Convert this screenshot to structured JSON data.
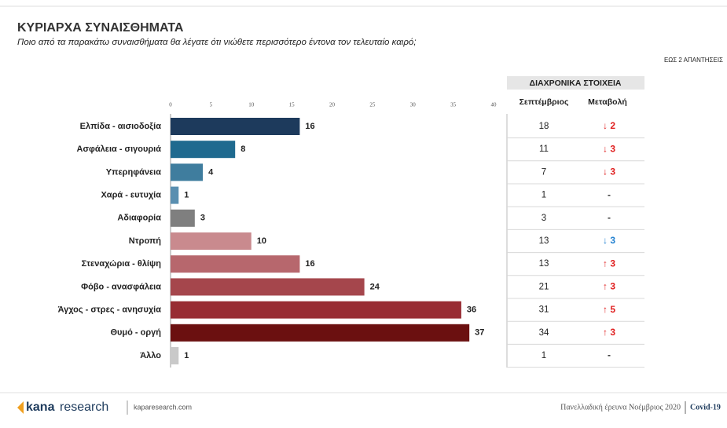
{
  "header": {
    "title": "ΚΥΡΙΑΡΧΑ ΣΥΝΑΙΣΘΗΜΑΤΑ",
    "subtitle": "Ποιο από τα παρακάτω συναισθήματα θα λέγατε ότι νιώθετε περισσότερο έντονα τον τελευταίο καιρό;",
    "note": "ΕΩΣ 2 ΑΠΑΝΤΗΣΕΙΣ"
  },
  "chart_data": {
    "type": "bar",
    "orientation": "horizontal",
    "categories": [
      "Ελπίδα - αισιοδοξία",
      "Ασφάλεια - σιγουριά",
      "Υπερηφάνεια",
      "Χαρά - ευτυχία",
      "Αδιαφορία",
      "Ντροπή",
      "Στεναχώρια - θλίψη",
      "Φόβο - ανασφάλεια",
      "Άγχος - στρες - ανησυχία",
      "Θυμό - οργή",
      "Άλλο"
    ],
    "values": [
      16,
      8,
      4,
      1,
      3,
      10,
      16,
      24,
      36,
      37,
      1
    ],
    "colors": [
      "#1d3a5c",
      "#1f6a8f",
      "#3f7d9e",
      "#5a8fb0",
      "#7f7f7f",
      "#c98a8e",
      "#b7676d",
      "#a5464c",
      "#982c33",
      "#6b1010",
      "#c9c9c9"
    ],
    "xlim": [
      0,
      40
    ],
    "xticks": [
      0,
      5,
      10,
      15,
      20,
      25,
      30,
      35,
      40
    ]
  },
  "table": {
    "title": "ΔΙΑΧΡΟΝΙΚΑ ΣΤΟΙΧΕΙΑ",
    "columns": [
      "Σεπτέμβριος",
      "Μεταβολή"
    ],
    "september": [
      "18",
      "11",
      "7",
      "1",
      "3",
      "13",
      "13",
      "21",
      "31",
      "34",
      "1"
    ],
    "change": [
      "↓ 2",
      "↓ 3",
      "↓ 3",
      "-",
      "-",
      "↓ 3",
      "↑ 3",
      "↑ 3",
      "↑ 5",
      "↑ 3",
      "-"
    ],
    "change_colors": [
      "#e02020",
      "#e02020",
      "#e02020",
      "#333333",
      "#333333",
      "#1f7fd0",
      "#e02020",
      "#e02020",
      "#e02020",
      "#e02020",
      "#333333"
    ]
  },
  "footer": {
    "brand_bold": "kana",
    "brand_light": "research",
    "site": "kaparesearch.com",
    "survey": "Πανελλαδική έρευνα Νοέμβριος 2020",
    "topic": "Covid-19"
  }
}
